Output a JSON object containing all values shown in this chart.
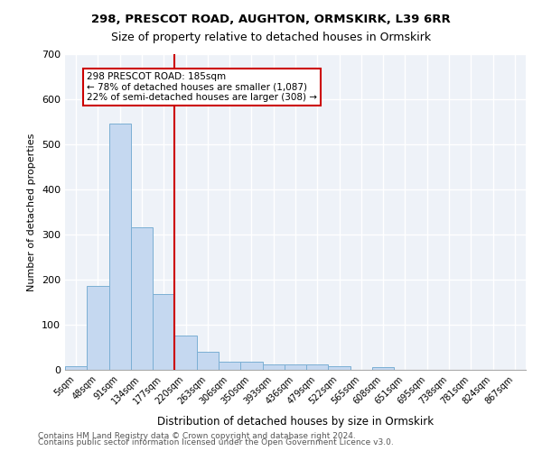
{
  "title1": "298, PRESCOT ROAD, AUGHTON, ORMSKIRK, L39 6RR",
  "title2": "Size of property relative to detached houses in Ormskirk",
  "xlabel": "Distribution of detached houses by size in Ormskirk",
  "ylabel": "Number of detached properties",
  "footnote1": "Contains HM Land Registry data © Crown copyright and database right 2024.",
  "footnote2": "Contains public sector information licensed under the Open Government Licence v3.0.",
  "bin_labels": [
    "5sqm",
    "48sqm",
    "91sqm",
    "134sqm",
    "177sqm",
    "220sqm",
    "263sqm",
    "306sqm",
    "350sqm",
    "393sqm",
    "436sqm",
    "479sqm",
    "522sqm",
    "565sqm",
    "608sqm",
    "651sqm",
    "695sqm",
    "738sqm",
    "781sqm",
    "824sqm",
    "867sqm"
  ],
  "bar_heights": [
    9,
    186,
    546,
    316,
    168,
    76,
    41,
    18,
    18,
    13,
    12,
    12,
    9,
    0,
    6,
    0,
    0,
    0,
    0,
    0,
    0
  ],
  "bar_color": "#c5d8f0",
  "bar_edge_color": "#7bafd4",
  "vline_x": 4.5,
  "vline_color": "#cc0000",
  "annotation_text": "298 PRESCOT ROAD: 185sqm\n← 78% of detached houses are smaller (1,087)\n22% of semi-detached houses are larger (308) →",
  "annotation_box_color": "#ffffff",
  "annotation_box_edge": "#cc0000",
  "ylim": [
    0,
    700
  ],
  "yticks": [
    0,
    100,
    200,
    300,
    400,
    500,
    600,
    700
  ],
  "bg_color": "#eef2f8",
  "grid_color": "#ffffff"
}
